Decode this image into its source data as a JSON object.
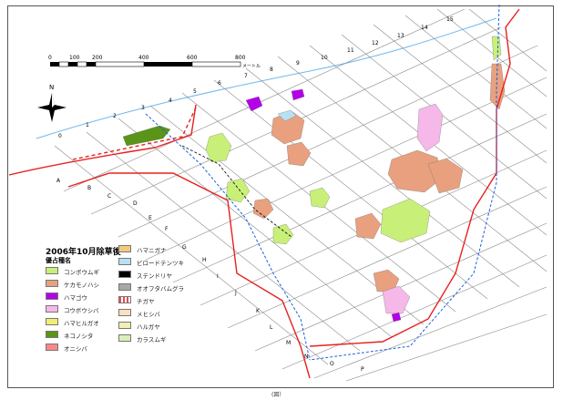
{
  "legend": {
    "title": "2006年10月除草後",
    "subtitle": "優占種名",
    "items": [
      {
        "label": "コンポウムギ",
        "color": "#c8ef78"
      },
      {
        "label": "ケカモノハシ",
        "color": "#e8a07e"
      },
      {
        "label": "ハマゴウ",
        "color": "#b400e8"
      },
      {
        "label": "コウボウシバ",
        "color": "#f5b8e8"
      },
      {
        "label": "ハマヒルガオ",
        "color": "#f0ef70"
      },
      {
        "label": "ネコノシタ",
        "color": "#5a9418"
      },
      {
        "label": "オニシバ",
        "color": "#f88a86"
      },
      {
        "label": "ハマニガナ",
        "color": "#f5c880"
      },
      {
        "label": "ビロードテンツキ",
        "color": "#b8e0f5"
      },
      {
        "label": "ステンドリヤ",
        "color": "#000000"
      },
      {
        "label": "オオフタバムグラ",
        "color": "#a8a8a8"
      },
      {
        "label": "チガヤ",
        "color": "#e05050"
      },
      {
        "label": "メヒシバ",
        "color": "#f8e0c0"
      },
      {
        "label": "ハルガヤ",
        "color": "#f0f0b0"
      },
      {
        "label": "カラスムギ",
        "color": "#d8f0b8"
      }
    ]
  },
  "scale": {
    "labels": [
      "0",
      "100",
      "200",
      "400",
      "600",
      "800"
    ],
    "unit": "メートル"
  },
  "north_label": "N",
  "grid_numbers": [
    "0",
    "1",
    "2",
    "3",
    "4",
    "5",
    "6",
    "7",
    "8",
    "9",
    "10",
    "11",
    "12",
    "13",
    "14",
    "15"
  ],
  "grid_letters": [
    "A",
    "B",
    "C",
    "D",
    "E",
    "F",
    "G",
    "H",
    "I",
    "J",
    "K",
    "L",
    "M",
    "N",
    "O",
    "P"
  ],
  "colors": {
    "boundary": "#e82020",
    "route": "#2060e0",
    "grid": "#888888",
    "shoreline": "#70b8f0"
  },
  "bottom_text": "(図）"
}
